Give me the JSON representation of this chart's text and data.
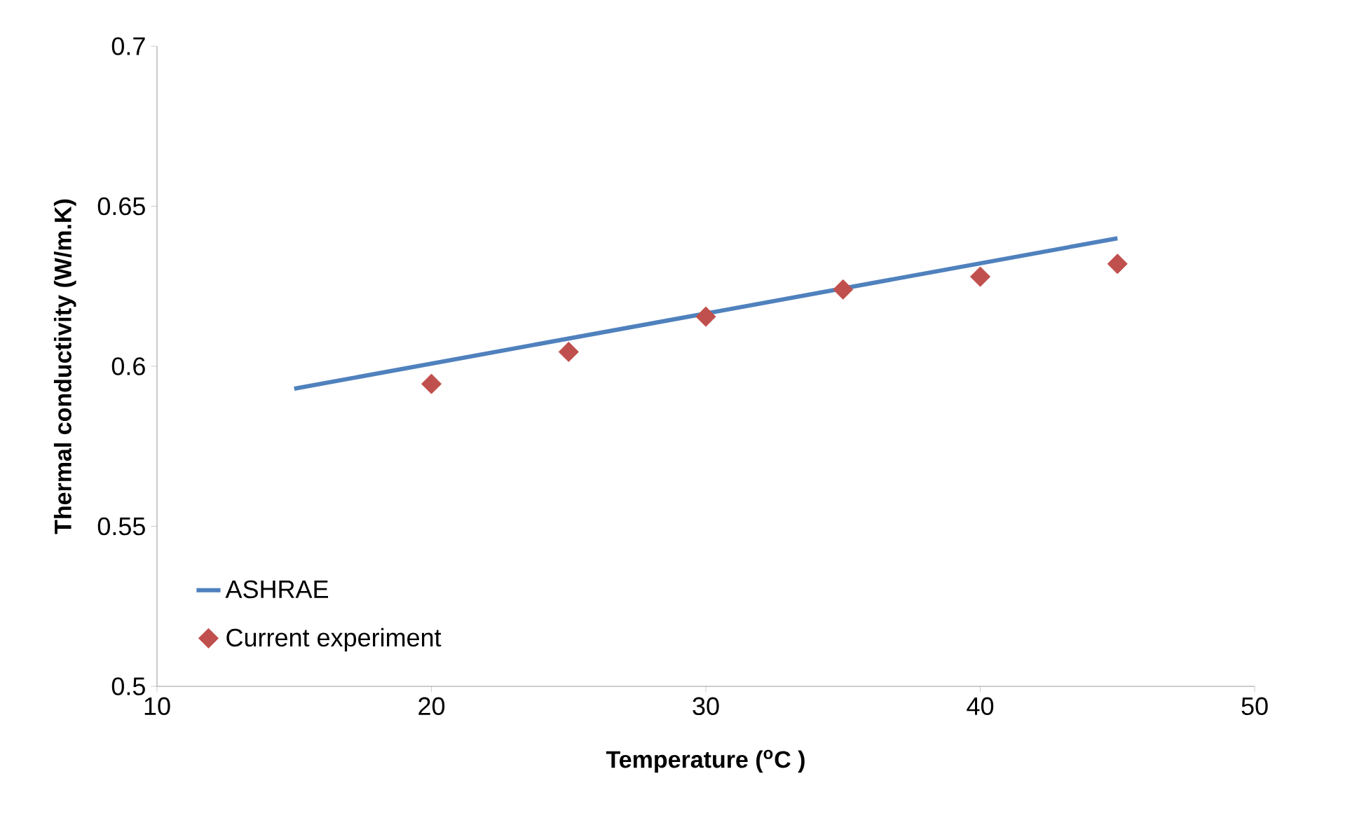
{
  "chart_data": {
    "type": "line",
    "xlabel": "Temperature ($^{o}$C )",
    "ylabel": "Thermal conductivity (W/m.K)",
    "xlim": [
      10,
      50
    ],
    "xticks": [
      10,
      20,
      30,
      40,
      50
    ],
    "ylim": [
      0.5,
      0.7
    ],
    "yticks": [
      0.5,
      0.55,
      0.6,
      0.65,
      0.7
    ],
    "grid": false,
    "legend": "bottom left",
    "series": [
      {
        "name": "ASHRAE",
        "color": "#4f81bd",
        "marker": "none",
        "line_style": "solid",
        "x": [
          15,
          45
        ],
        "values": [
          0.593,
          0.64
        ]
      },
      {
        "name": "Current experiment",
        "type": "scatter",
        "color": "#c0504d",
        "marker": "diamond",
        "x": [
          20,
          25,
          30,
          35,
          40,
          45
        ],
        "values": [
          0.5945,
          0.6045,
          0.6155,
          0.624,
          0.628,
          0.632
        ]
      }
    ]
  }
}
